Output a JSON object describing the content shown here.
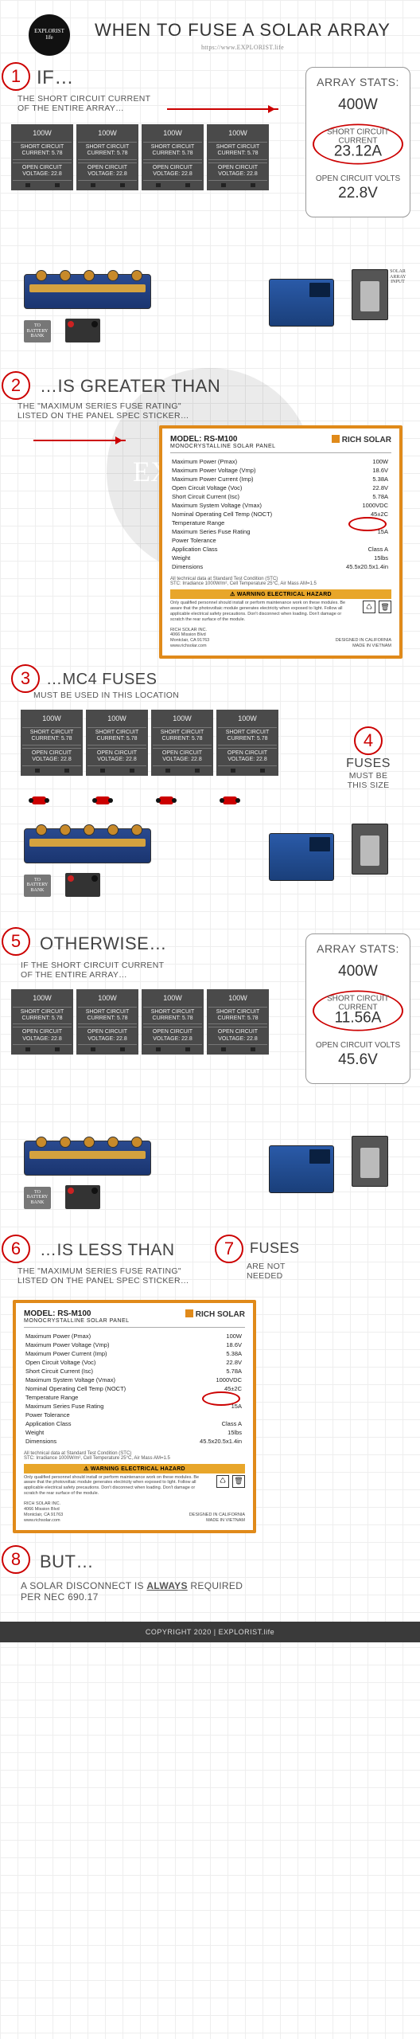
{
  "colors": {
    "accent": "#cc0000",
    "sticker_border": "#e08a1a",
    "panel_bg": "#4a4a4a"
  },
  "header": {
    "logo_text": "EXPLORIST life",
    "title": "WHEN TO FUSE A SOLAR ARRAY",
    "url": "https://www.EXPLORIST.life"
  },
  "steps": {
    "s1": {
      "n": "1",
      "heading": "IF…",
      "sub": "THE SHORT CIRCUIT CURRENT\nOF THE ENTIRE ARRAY…"
    },
    "s2": {
      "n": "2",
      "heading": "…IS GREATER THAN",
      "sub": "THE \"MAXIMUM SERIES FUSE RATING\"\nLISTED ON THE PANEL SPEC STICKER…"
    },
    "s3": {
      "n": "3",
      "heading": "…MC4 FUSES",
      "sub": "MUST BE USED IN THIS LOCATION"
    },
    "s4": {
      "n": "4",
      "heading": "FUSES",
      "sub": "MUST BE\nTHIS SIZE"
    },
    "s5": {
      "n": "5",
      "heading": "OTHERWISE…",
      "sub": "IF THE SHORT CIRCUIT CURRENT\nOF THE ENTIRE ARRAY…"
    },
    "s6": {
      "n": "6",
      "heading": "…IS LESS THAN",
      "sub": "THE \"MAXIMUM SERIES FUSE RATING\"\nLISTED ON THE PANEL SPEC STICKER…"
    },
    "s7": {
      "n": "7",
      "heading": "FUSES",
      "sub": "ARE NOT\nNEEDED"
    },
    "s8": {
      "n": "8",
      "heading": "BUT…",
      "sub": "A SOLAR DISCONNECT IS ALWAYS REQUIRED\nPER NEC 690.17"
    }
  },
  "panel": {
    "watt": "100W",
    "isc_lbl": "SHORT CIRCUIT CURRENT:",
    "isc_val": "5.78",
    "voc_lbl": "OPEN CIRCUIT VOLTAGE:",
    "voc_val": "22.8"
  },
  "stats_a": {
    "title": "ARRAY STATS:",
    "watt": "400W",
    "isc_lbl": "SHORT CIRCUIT CURRENT",
    "isc": "23.12A",
    "voc_lbl": "OPEN CIRCUIT VOLTS",
    "voc": "22.8V"
  },
  "stats_b": {
    "title": "ARRAY STATS:",
    "watt": "400W",
    "isc_lbl": "SHORT CIRCUIT CURRENT",
    "isc": "11.56A",
    "voc_lbl": "OPEN CIRCUIT VOLTS",
    "voc": "45.6V"
  },
  "equip": {
    "batt": "TO BATTERY BANK",
    "outlet": "SOLAR ARRAY INPUT"
  },
  "sticker": {
    "model_lbl": "MODEL:",
    "model": "RS-M100",
    "type": "MONOCRYSTALLINE SOLAR PANEL",
    "brand": "RICH SOLAR",
    "rows": [
      [
        "Maximum Power (Pmax)",
        "100W"
      ],
      [
        "Maximum Power Voltage (Vmp)",
        "18.6V"
      ],
      [
        "Maximum Power Current (Imp)",
        "5.38A"
      ],
      [
        "Open Circuit Voltage (Voc)",
        "22.8V"
      ],
      [
        "Short Circuit Current (Isc)",
        "5.78A"
      ],
      [
        "Maximum System Voltage (Vmax)",
        "1000VDC"
      ],
      [
        "Nominal Operating Cell Temp (NOCT)",
        "45±2C"
      ],
      [
        "Temperature Range",
        ""
      ],
      [
        "Maximum Series Fuse Rating",
        "15A"
      ],
      [
        "Power Tolerance",
        ""
      ],
      [
        "Application Class",
        "Class A"
      ],
      [
        "Weight",
        "15lbs"
      ],
      [
        "Dimensions",
        "45.5x20.5x1.4in"
      ]
    ],
    "hl_row": 8,
    "note": "All technical data at Standard Test Condition (STC)\nSTC: Irradiance 1000W/m², Cell Temperature 25°C, Air Mass AM=1.5",
    "hazard": "WARNING  ELECTRICAL HAZARD",
    "fine": "Only qualified personnel should install or perform maintenance work on these modules. Be aware that the photovoltaic module generates electricity when exposed to light. Follow all applicable electrical safety precautions. Don't disconnect when loading. Don't damage or scratch the rear surface of the module.",
    "company": "RICH SOLAR INC.\n4066 Mission Blvd\nMontclair, CA 91763\nwww.richsolar.com",
    "origin": "DESIGNED IN CALIFORNIA\nMADE IN VIETNAM"
  },
  "footer": "COPYRIGHT 2020 | EXPLORIST.life"
}
